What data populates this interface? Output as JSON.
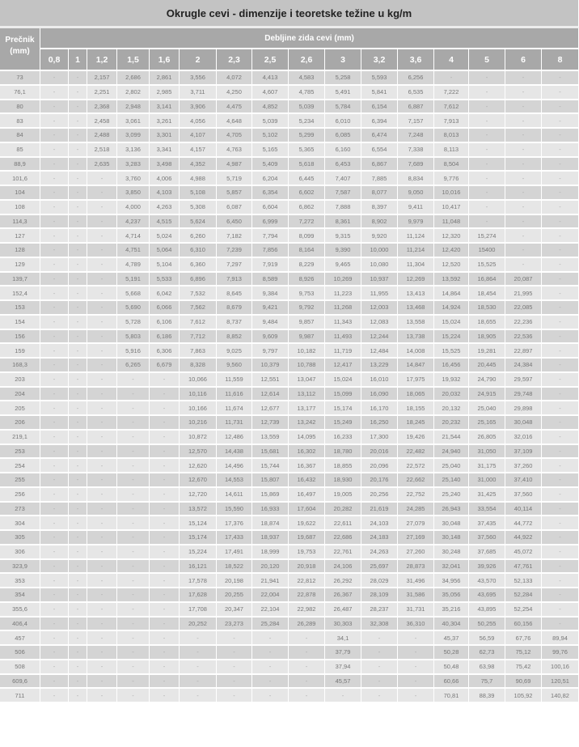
{
  "title": "Okrugle cevi - dimenzije i teoretske težine u kg/m",
  "header": {
    "diameter_label_line1": "Prečnik",
    "diameter_label_line2": "(mm)",
    "thickness_group_label": "Debljine zida cevi (mm)",
    "thickness_columns": [
      "0,8",
      "1",
      "1,2",
      "1,5",
      "1,6",
      "2",
      "2,3",
      "2,5",
      "2,6",
      "3",
      "3,2",
      "3,6",
      "4",
      "5",
      "6",
      "8"
    ]
  },
  "rows": [
    [
      "73",
      "-",
      "-",
      "2,157",
      "2,686",
      "2,861",
      "3,556",
      "4,072",
      "4,413",
      "4,583",
      "5,258",
      "5,593",
      "6,256",
      "-",
      "-",
      "-",
      "-"
    ],
    [
      "76,1",
      "-",
      "-",
      "2,251",
      "2,802",
      "2,985",
      "3,711",
      "4,250",
      "4,607",
      "4,785",
      "5,491",
      "5,841",
      "6,535",
      "7,222",
      "-",
      "-",
      "-"
    ],
    [
      "80",
      "-",
      "-",
      "2,368",
      "2,948",
      "3,141",
      "3,906",
      "4,475",
      "4,852",
      "5,039",
      "5,784",
      "6,154",
      "6,887",
      "7,612",
      "-",
      "-",
      "-"
    ],
    [
      "83",
      "-",
      "-",
      "2,458",
      "3,061",
      "3,261",
      "4,056",
      "4,648",
      "5,039",
      "5,234",
      "6,010",
      "6,394",
      "7,157",
      "7,913",
      "-",
      "-",
      "-"
    ],
    [
      "84",
      "-",
      "-",
      "2,488",
      "3,099",
      "3,301",
      "4,107",
      "4,705",
      "5,102",
      "5,299",
      "6,085",
      "6,474",
      "7,248",
      "8,013",
      "-",
      "-",
      "-"
    ],
    [
      "85",
      "-",
      "-",
      "2,518",
      "3,136",
      "3,341",
      "4,157",
      "4,763",
      "5,165",
      "5,365",
      "6,160",
      "6,554",
      "7,338",
      "8,113",
      "-",
      "-",
      "-"
    ],
    [
      "88,9",
      "-",
      "-",
      "2,635",
      "3,283",
      "3,498",
      "4,352",
      "4,987",
      "5,409",
      "5,618",
      "6,453",
      "6,867",
      "7,689",
      "8,504",
      "-",
      "-",
      "-"
    ],
    [
      "101,6",
      "-",
      "-",
      "-",
      "3,760",
      "4,006",
      "4,988",
      "5,719",
      "6,204",
      "6,445",
      "7,407",
      "7,885",
      "8,834",
      "9,776",
      "-",
      "-",
      "-"
    ],
    [
      "104",
      "-",
      "-",
      "-",
      "3,850",
      "4,103",
      "5,108",
      "5,857",
      "6,354",
      "6,602",
      "7,587",
      "8,077",
      "9,050",
      "10,016",
      "-",
      "-",
      "-"
    ],
    [
      "108",
      "-",
      "-",
      "-",
      "4,000",
      "4,263",
      "5,308",
      "6,087",
      "6,604",
      "6,862",
      "7,888",
      "8,397",
      "9,411",
      "10,417",
      "-",
      "-",
      "-"
    ],
    [
      "114,3",
      "-",
      "-",
      "-",
      "4,237",
      "4,515",
      "5,624",
      "6,450",
      "6,999",
      "7,272",
      "8,361",
      "8,902",
      "9,979",
      "11,048",
      "-",
      "-",
      "-"
    ],
    [
      "127",
      "-",
      "-",
      "-",
      "4,714",
      "5,024",
      "6,260",
      "7,182",
      "7,794",
      "8,099",
      "9,315",
      "9,920",
      "11,124",
      "12,320",
      "15,274",
      "-",
      "-"
    ],
    [
      "128",
      "-",
      "-",
      "-",
      "4,751",
      "5,064",
      "6,310",
      "7,239",
      "7,856",
      "8,164",
      "9,390",
      "10,000",
      "11,214",
      "12,420",
      "15400",
      "-",
      "-"
    ],
    [
      "129",
      "-",
      "-",
      "-",
      "4,789",
      "5,104",
      "6,360",
      "7,297",
      "7,919",
      "8,229",
      "9,465",
      "10,080",
      "11,304",
      "12,520",
      "15,525",
      "-",
      "-"
    ],
    [
      "139,7",
      "-",
      "-",
      "-",
      "5,191",
      "5,533",
      "6,896",
      "7,913",
      "8,589",
      "8,926",
      "10,269",
      "10,937",
      "12,269",
      "13,592",
      "16,864",
      "20,087",
      "-"
    ],
    [
      "152,4",
      "-",
      "-",
      "-",
      "5,668",
      "6,042",
      "7,532",
      "8,645",
      "9,384",
      "9,753",
      "11,223",
      "11,955",
      "13,413",
      "14,864",
      "18,454",
      "21,995",
      "-"
    ],
    [
      "153",
      "-",
      "-",
      "-",
      "5,690",
      "6,066",
      "7,562",
      "8,679",
      "9,421",
      "9,792",
      "11,268",
      "12,003",
      "13,468",
      "14,924",
      "18,530",
      "22,085",
      "-"
    ],
    [
      "154",
      "-",
      "-",
      "-",
      "5,728",
      "6,106",
      "7,612",
      "8,737",
      "9,484",
      "9,857",
      "11,343",
      "12,083",
      "13,558",
      "15,024",
      "18,655",
      "22,236",
      "-"
    ],
    [
      "156",
      "-",
      "-",
      "-",
      "5,803",
      "6,186",
      "7,712",
      "8,852",
      "9,609",
      "9,987",
      "11,493",
      "12,244",
      "13,738",
      "15,224",
      "18,905",
      "22,536",
      "-"
    ],
    [
      "159",
      "-",
      "-",
      "-",
      "5,916",
      "6,306",
      "7,863",
      "9,025",
      "9,797",
      "10,182",
      "11,719",
      "12,484",
      "14,008",
      "15,525",
      "19,281",
      "22,897",
      "-"
    ],
    [
      "168,3",
      "-",
      "-",
      "-",
      "6,265",
      "6,679",
      "8,328",
      "9,560",
      "10,379",
      "10,788",
      "12,417",
      "13,229",
      "14,847",
      "16,456",
      "20,445",
      "24,384",
      "-"
    ],
    [
      "203",
      "-",
      "-",
      "-",
      "-",
      "-",
      "10,066",
      "11,559",
      "12,551",
      "13,047",
      "15,024",
      "16,010",
      "17,975",
      "19,932",
      "24,790",
      "29,597",
      "-"
    ],
    [
      "204",
      "-",
      "-",
      "-",
      "-",
      "-",
      "10,116",
      "11,616",
      "12,614",
      "13,112",
      "15,099",
      "16,090",
      "18,065",
      "20,032",
      "24,915",
      "29,748",
      "-"
    ],
    [
      "205",
      "-",
      "-",
      "-",
      "-",
      "-",
      "10,166",
      "11,674",
      "12,677",
      "13,177",
      "15,174",
      "16,170",
      "18,155",
      "20,132",
      "25,040",
      "29,898",
      "-"
    ],
    [
      "206",
      "-",
      "-",
      "-",
      "-",
      "-",
      "10,216",
      "11,731",
      "12,739",
      "13,242",
      "15,249",
      "16,250",
      "18,245",
      "20,232",
      "25,165",
      "30,048",
      "-"
    ],
    [
      "219,1",
      "-",
      "-",
      "-",
      "-",
      "-",
      "10,872",
      "12,486",
      "13,559",
      "14,095",
      "16,233",
      "17,300",
      "19,426",
      "21,544",
      "26,805",
      "32,016",
      "-"
    ],
    [
      "253",
      "-",
      "-",
      "-",
      "-",
      "-",
      "12,570",
      "14,438",
      "15,681",
      "16,302",
      "18,780",
      "20,016",
      "22,482",
      "24,940",
      "31,050",
      "37,109",
      "-"
    ],
    [
      "254",
      "-",
      "-",
      "-",
      "-",
      "-",
      "12,620",
      "14,496",
      "15,744",
      "16,367",
      "18,855",
      "20,096",
      "22,572",
      "25,040",
      "31,175",
      "37,260",
      "-"
    ],
    [
      "255",
      "-",
      "-",
      "-",
      "-",
      "-",
      "12,670",
      "14,553",
      "15,807",
      "16,432",
      "18,930",
      "20,176",
      "22,662",
      "25,140",
      "31,000",
      "37,410",
      "-"
    ],
    [
      "256",
      "-",
      "-",
      "-",
      "-",
      "-",
      "12,720",
      "14,611",
      "15,869",
      "16,497",
      "19,005",
      "20,256",
      "22,752",
      "25,240",
      "31,425",
      "37,560",
      "-"
    ],
    [
      "273",
      "-",
      "-",
      "-",
      "-",
      "-",
      "13,572",
      "15,590",
      "16,933",
      "17,604",
      "20,282",
      "21,619",
      "24,285",
      "26,943",
      "33,554",
      "40,114",
      "-"
    ],
    [
      "304",
      "-",
      "-",
      "-",
      "-",
      "-",
      "15,124",
      "17,376",
      "18,874",
      "19,622",
      "22,611",
      "24,103",
      "27,079",
      "30,048",
      "37,435",
      "44,772",
      "-"
    ],
    [
      "305",
      "-",
      "-",
      "-",
      "-",
      "-",
      "15,174",
      "17,433",
      "18,937",
      "19,687",
      "22,686",
      "24,183",
      "27,169",
      "30,148",
      "37,560",
      "44,922",
      "-"
    ],
    [
      "306",
      "-",
      "-",
      "-",
      "-",
      "-",
      "15,224",
      "17,491",
      "18,999",
      "19,753",
      "22,761",
      "24,263",
      "27,260",
      "30,248",
      "37,685",
      "45,072",
      "-"
    ],
    [
      "323,9",
      "-",
      "-",
      "-",
      "-",
      "-",
      "16,121",
      "18,522",
      "20,120",
      "20,918",
      "24,106",
      "25,697",
      "28,873",
      "32,041",
      "39,926",
      "47,761",
      "-"
    ],
    [
      "353",
      "-",
      "-",
      "-",
      "-",
      "-",
      "17,578",
      "20,198",
      "21,941",
      "22,812",
      "26,292",
      "28,029",
      "31,496",
      "34,956",
      "43,570",
      "52,133",
      "-"
    ],
    [
      "354",
      "-",
      "-",
      "-",
      "-",
      "-",
      "17,628",
      "20,255",
      "22,004",
      "22,878",
      "26,367",
      "28,109",
      "31,586",
      "35,056",
      "43,695",
      "52,284",
      "-"
    ],
    [
      "355,6",
      "-",
      "-",
      "-",
      "-",
      "-",
      "17,708",
      "20,347",
      "22,104",
      "22,982",
      "26,487",
      "28,237",
      "31,731",
      "35,216",
      "43,895",
      "52,254",
      "-"
    ],
    [
      "406,4",
      "-",
      "-",
      "-",
      "-",
      "-",
      "20,252",
      "23,273",
      "25,284",
      "26,289",
      "30,303",
      "32,308",
      "36,310",
      "40,304",
      "50,255",
      "60,156",
      "-"
    ],
    [
      "457",
      "-",
      "-",
      "-",
      "-",
      "-",
      "-",
      "-",
      "-",
      "-",
      "34,1",
      "-",
      "-",
      "45,37",
      "56,59",
      "67,76",
      "89,94"
    ],
    [
      "506",
      "-",
      "-",
      "-",
      "-",
      "-",
      "-",
      "-",
      "-",
      "-",
      "37,79",
      "-",
      "-",
      "50,28",
      "62,73",
      "75,12",
      "99,76"
    ],
    [
      "508",
      "-",
      "-",
      "-",
      "-",
      "-",
      "-",
      "-",
      "-",
      "-",
      "37,94",
      "-",
      "-",
      "50,48",
      "63,98",
      "75,42",
      "100,16"
    ],
    [
      "609,6",
      "-",
      "-",
      "-",
      "-",
      "-",
      "-",
      "-",
      "-",
      "-",
      "45,57",
      "-",
      "-",
      "60,66",
      "75,7",
      "90,69",
      "120,51"
    ],
    [
      "711",
      "-",
      "-",
      "-",
      "-",
      "-",
      "-",
      "-",
      "-",
      "-",
      "-",
      "-",
      "-",
      "70,81",
      "88,39",
      "105,92",
      "140,82"
    ]
  ]
}
